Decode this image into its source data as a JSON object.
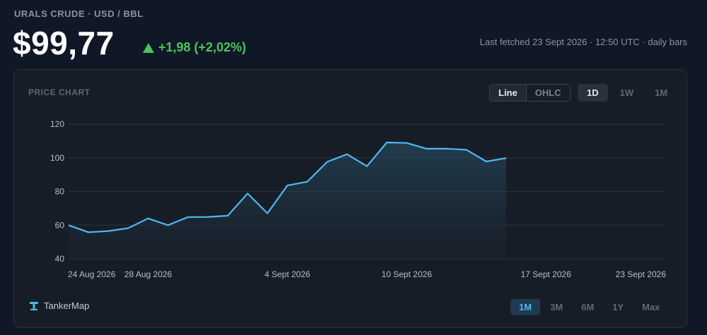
{
  "header": {
    "ticker": "URALS CRUDE · USD / BBL",
    "price": "$99,77",
    "change": "+1,98 (+2,02%)",
    "fetched": "Last fetched 23 Sept 2026 · 12:50 UTC · daily bars"
  },
  "panel": {
    "title": "PRICE CHART",
    "chart_types": [
      {
        "label": "Line",
        "active": true
      },
      {
        "label": "OHLC",
        "active": false
      }
    ],
    "intervals": [
      {
        "label": "1D",
        "active": true
      },
      {
        "label": "1W",
        "active": false
      },
      {
        "label": "1M",
        "active": false
      }
    ],
    "ranges": [
      {
        "label": "1M",
        "active": true
      },
      {
        "label": "3M",
        "active": false
      },
      {
        "label": "6M",
        "active": false
      },
      {
        "label": "1Y",
        "active": false
      },
      {
        "label": "Max",
        "active": false
      }
    ],
    "brand": "TankerMap"
  },
  "colors": {
    "line": "#4db8f0",
    "positive": "#4cc35a",
    "accent": "#4db8f0"
  },
  "chart_data": {
    "type": "area",
    "x": [
      "2026-08-24",
      "2026-08-25",
      "2026-08-26",
      "2026-08-27",
      "2026-08-28",
      "2026-08-29",
      "2026-08-30",
      "2026-08-31",
      "2026-09-01",
      "2026-09-02",
      "2026-09-03",
      "2026-09-04",
      "2026-09-05",
      "2026-09-06",
      "2026-09-07",
      "2026-09-08",
      "2026-09-09",
      "2026-09-10",
      "2026-09-11",
      "2026-09-12",
      "2026-09-13",
      "2026-09-14",
      "2026-09-15",
      "2026-09-16",
      "2026-09-17",
      "2026-09-18",
      "2026-09-19",
      "2026-09-20",
      "2026-09-21",
      "2026-09-22",
      "2026-09-23"
    ],
    "x_tick_labels": [
      {
        "date": "2026-08-24",
        "label": "24 Aug 2026"
      },
      {
        "date": "2026-08-28",
        "label": "28 Aug 2026"
      },
      {
        "date": "2026-09-04",
        "label": "4 Sept 2026"
      },
      {
        "date": "2026-09-10",
        "label": "10 Sept 2026"
      },
      {
        "date": "2026-09-17",
        "label": "17 Sept 2026"
      },
      {
        "date": "2026-09-23",
        "label": "23 Sept 2026"
      }
    ],
    "points": [
      {
        "date": "2026-08-24",
        "value": 60.0
      },
      {
        "date": "2026-08-25",
        "value": 55.8
      },
      {
        "date": "2026-08-26",
        "value": 56.5
      },
      {
        "date": "2026-08-27",
        "value": 58.2
      },
      {
        "date": "2026-08-28",
        "value": 64.0
      },
      {
        "date": "2026-08-29",
        "value": 60.0
      },
      {
        "date": "2026-08-30",
        "value": 64.8
      },
      {
        "date": "2026-08-31",
        "value": 64.9
      },
      {
        "date": "2026-09-01",
        "value": 65.6
      },
      {
        "date": "2026-09-02",
        "value": 78.8
      },
      {
        "date": "2026-09-03",
        "value": 67.0
      },
      {
        "date": "2026-09-04",
        "value": 83.6
      },
      {
        "date": "2026-09-05",
        "value": 85.8
      },
      {
        "date": "2026-09-06",
        "value": 97.6
      },
      {
        "date": "2026-09-07",
        "value": 102.1
      },
      {
        "date": "2026-09-08",
        "value": 95.0
      },
      {
        "date": "2026-09-09",
        "value": 109.1
      },
      {
        "date": "2026-09-10",
        "value": 108.8
      },
      {
        "date": "2026-09-11",
        "value": 105.4
      },
      {
        "date": "2026-09-12",
        "value": 105.4
      },
      {
        "date": "2026-09-13",
        "value": 104.8
      },
      {
        "date": "2026-09-14",
        "value": 97.8
      },
      {
        "date": "2026-09-15",
        "value": 99.8
      }
    ],
    "ylim": [
      40,
      120
    ],
    "yticks": [
      40,
      60,
      80,
      100,
      120
    ],
    "grid": true,
    "xlabel": "",
    "ylabel": ""
  }
}
